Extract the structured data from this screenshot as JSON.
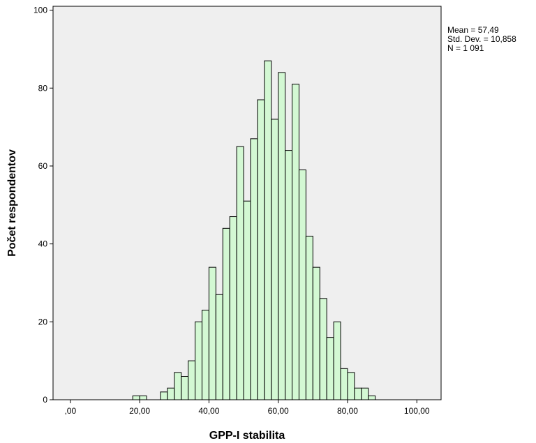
{
  "chart_data": {
    "type": "bar",
    "subtype": "histogram",
    "xlabel": "GPP-I stabilita",
    "ylabel": "Počet respondentov",
    "xlim": [
      -5,
      107
    ],
    "ylim": [
      0,
      101
    ],
    "xticks": [
      {
        "value": 0,
        "label": ",00"
      },
      {
        "value": 20,
        "label": "20,00"
      },
      {
        "value": 40,
        "label": "40,00"
      },
      {
        "value": 60,
        "label": "60,00"
      },
      {
        "value": 80,
        "label": "80,00"
      },
      {
        "value": 100,
        "label": "100,00"
      }
    ],
    "yticks": [
      {
        "value": 0,
        "label": "0"
      },
      {
        "value": 20,
        "label": "20"
      },
      {
        "value": 40,
        "label": "40"
      },
      {
        "value": 60,
        "label": "60"
      },
      {
        "value": 80,
        "label": "80"
      },
      {
        "value": 100,
        "label": "100"
      }
    ],
    "bin_width": 2,
    "bins": [
      {
        "x": 19,
        "count": 1
      },
      {
        "x": 21,
        "count": 1
      },
      {
        "x": 27,
        "count": 2
      },
      {
        "x": 29,
        "count": 3
      },
      {
        "x": 31,
        "count": 7
      },
      {
        "x": 33,
        "count": 6
      },
      {
        "x": 35,
        "count": 10
      },
      {
        "x": 37,
        "count": 20
      },
      {
        "x": 39,
        "count": 23
      },
      {
        "x": 41,
        "count": 34
      },
      {
        "x": 43,
        "count": 27
      },
      {
        "x": 45,
        "count": 44
      },
      {
        "x": 47,
        "count": 47
      },
      {
        "x": 49,
        "count": 65
      },
      {
        "x": 51,
        "count": 51
      },
      {
        "x": 53,
        "count": 67
      },
      {
        "x": 55,
        "count": 77
      },
      {
        "x": 57,
        "count": 87
      },
      {
        "x": 59,
        "count": 72
      },
      {
        "x": 61,
        "count": 84
      },
      {
        "x": 63,
        "count": 64
      },
      {
        "x": 65,
        "count": 81
      },
      {
        "x": 67,
        "count": 59
      },
      {
        "x": 69,
        "count": 42
      },
      {
        "x": 71,
        "count": 34
      },
      {
        "x": 73,
        "count": 26
      },
      {
        "x": 75,
        "count": 16
      },
      {
        "x": 77,
        "count": 20
      },
      {
        "x": 79,
        "count": 8
      },
      {
        "x": 81,
        "count": 7
      },
      {
        "x": 83,
        "count": 3
      },
      {
        "x": 85,
        "count": 3
      },
      {
        "x": 87,
        "count": 1
      }
    ],
    "stats": {
      "mean": "Mean = 57,49",
      "std_dev": "Std. Dev. = 10,858",
      "n": "N = 1 091"
    },
    "colors": {
      "plot_background": "#efefef",
      "bar_fill": "#d3f8d3",
      "bar_stroke": "#000000"
    },
    "grid": false
  }
}
